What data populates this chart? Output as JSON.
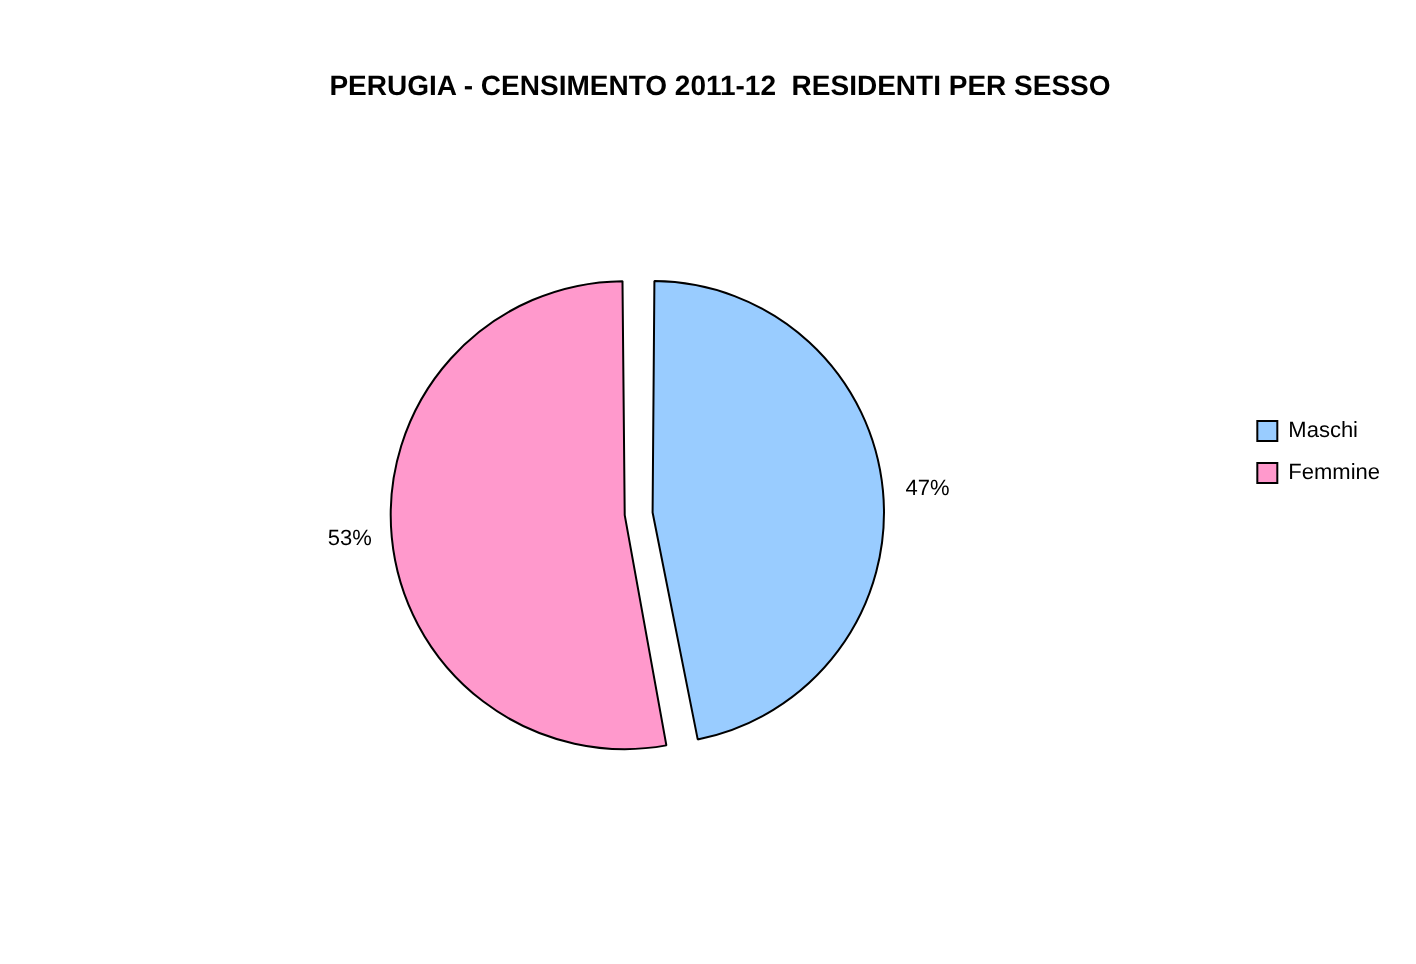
{
  "chart_data": {
    "type": "pie",
    "title": "PERUGIA - CENSIMENTO 2011-12  RESIDENTI PER SESSO",
    "categories": [
      "Maschi",
      "Femmine"
    ],
    "values": [
      47,
      53
    ],
    "colors": [
      "#99ccff",
      "#ff99cc"
    ],
    "value_labels": [
      "47%",
      "53%"
    ],
    "legend": "right"
  }
}
